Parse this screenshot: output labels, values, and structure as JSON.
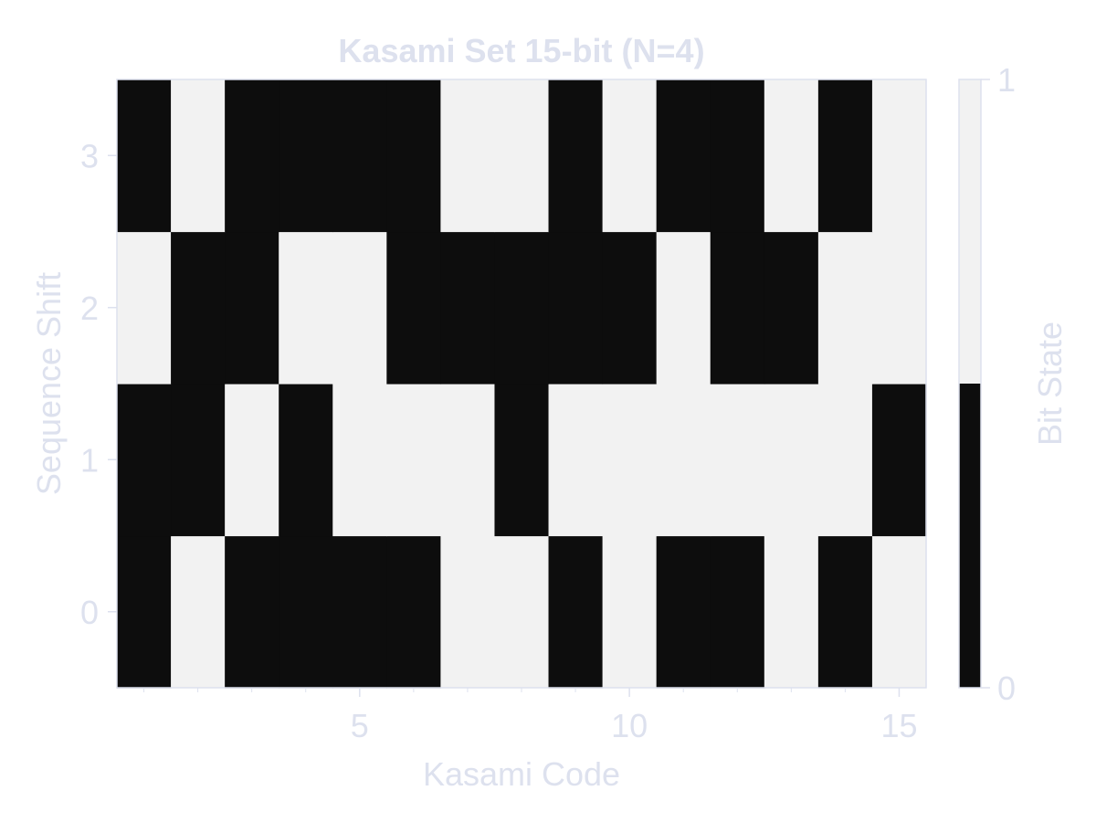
{
  "colors": {
    "text": "#dde1ee",
    "frame": "#dde1ee",
    "bit_one": "#f2f2f2",
    "bit_zero": "#0d0d0d"
  },
  "chart_data": {
    "type": "heatmap",
    "title": "Kasami Set 15-bit (N=4)",
    "xlabel": "Kasami Code",
    "ylabel": "Sequence Shift",
    "x": [
      1,
      2,
      3,
      4,
      5,
      6,
      7,
      8,
      9,
      10,
      11,
      12,
      13,
      14,
      15
    ],
    "y": [
      0,
      1,
      2,
      3
    ],
    "values": [
      [
        0,
        1,
        0,
        0,
        0,
        0,
        1,
        1,
        0,
        1,
        0,
        0,
        1,
        0,
        1
      ],
      [
        0,
        0,
        1,
        0,
        1,
        1,
        1,
        0,
        1,
        1,
        1,
        1,
        1,
        1,
        0
      ],
      [
        1,
        0,
        0,
        1,
        1,
        0,
        0,
        0,
        0,
        0,
        1,
        0,
        0,
        1,
        1
      ],
      [
        0,
        1,
        0,
        0,
        0,
        0,
        1,
        1,
        0,
        1,
        0,
        0,
        1,
        0,
        1
      ]
    ],
    "xlim": [
      0.5,
      15.5
    ],
    "ylim": [
      -0.5,
      3.5
    ],
    "x_ticks": [
      5,
      10,
      15
    ],
    "x_minor_ticks": [
      1,
      2,
      3,
      4,
      6,
      7,
      8,
      9,
      11,
      12,
      13,
      14
    ],
    "y_ticks": [
      0,
      1,
      2,
      3
    ],
    "colorbar": {
      "label": "Bit State",
      "range": [
        0,
        1
      ],
      "ticks": [
        0,
        1
      ]
    },
    "grid": false
  }
}
